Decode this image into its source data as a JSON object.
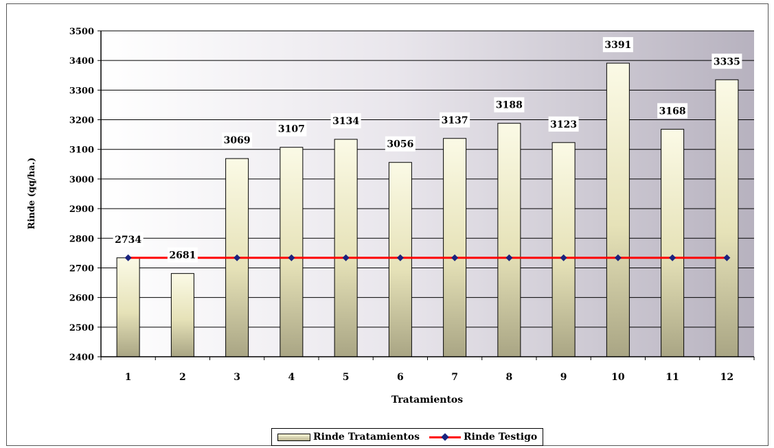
{
  "chart_data": {
    "type": "bar",
    "title": "",
    "xlabel": "Tratamientos",
    "ylabel": "Rinde (qq/ha.)",
    "ylim": [
      2400,
      3500
    ],
    "yticks": [
      "2400",
      "2500",
      "2600",
      "2700",
      "2800",
      "2900",
      "3000",
      "3100",
      "3200",
      "3300",
      "3400",
      "3500"
    ],
    "categories": [
      "1",
      "2",
      "3",
      "4",
      "5",
      "6",
      "7",
      "8",
      "9",
      "10",
      "11",
      "12"
    ],
    "grid": "horizontal",
    "legend_position": "bottom",
    "series": [
      {
        "name": "Rinde Tratamientos",
        "type": "bar",
        "values": [
          2734,
          2681,
          3069,
          3107,
          3134,
          3056,
          3137,
          3188,
          3123,
          3391,
          3168,
          3335
        ],
        "data_labels": [
          "2734",
          "2681",
          "3069",
          "3107",
          "3134",
          "3056",
          "3137",
          "3188",
          "3123",
          "3391",
          "3168",
          "3335"
        ],
        "color": "#e6e2b8"
      },
      {
        "name": "Rinde Testigo",
        "type": "line",
        "values": [
          2734,
          2734,
          2734,
          2734,
          2734,
          2734,
          2734,
          2734,
          2734,
          2734,
          2734,
          2734
        ],
        "color": "#ff0000",
        "marker_color": "#1a237e"
      }
    ]
  }
}
